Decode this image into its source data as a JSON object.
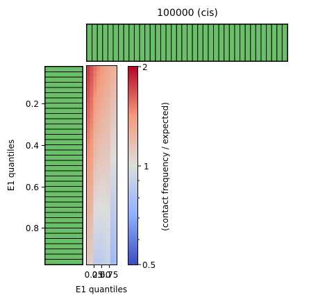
{
  "chart_data": {
    "type": "heatmap",
    "title": "100000 (cis)",
    "xlabel": "E1 quantiles",
    "ylabel": "E1 quantiles",
    "colorbar_label": "(contact frequency / expected)",
    "colormap": "coolwarm",
    "color_scale": "log",
    "vmin": 0.5,
    "vmax": 2,
    "colorbar_ticks": [
      "0.5",
      "1",
      "2"
    ],
    "x_ticks": [
      "0.25",
      "0.50",
      "0.75"
    ],
    "y_ticks": [
      "0.2",
      "0.4",
      "0.6",
      "0.8"
    ],
    "n_rows": 38,
    "n_cols": 9,
    "row_left_value": 1.78,
    "row_right_value": 0.88,
    "col_profile": [
      1.0,
      0.98,
      0.96,
      0.95,
      0.95,
      0.96,
      0.98,
      1.0,
      1.02
    ],
    "marginal_bar_color": "#6abf69",
    "marginal_bar_count": 38
  }
}
